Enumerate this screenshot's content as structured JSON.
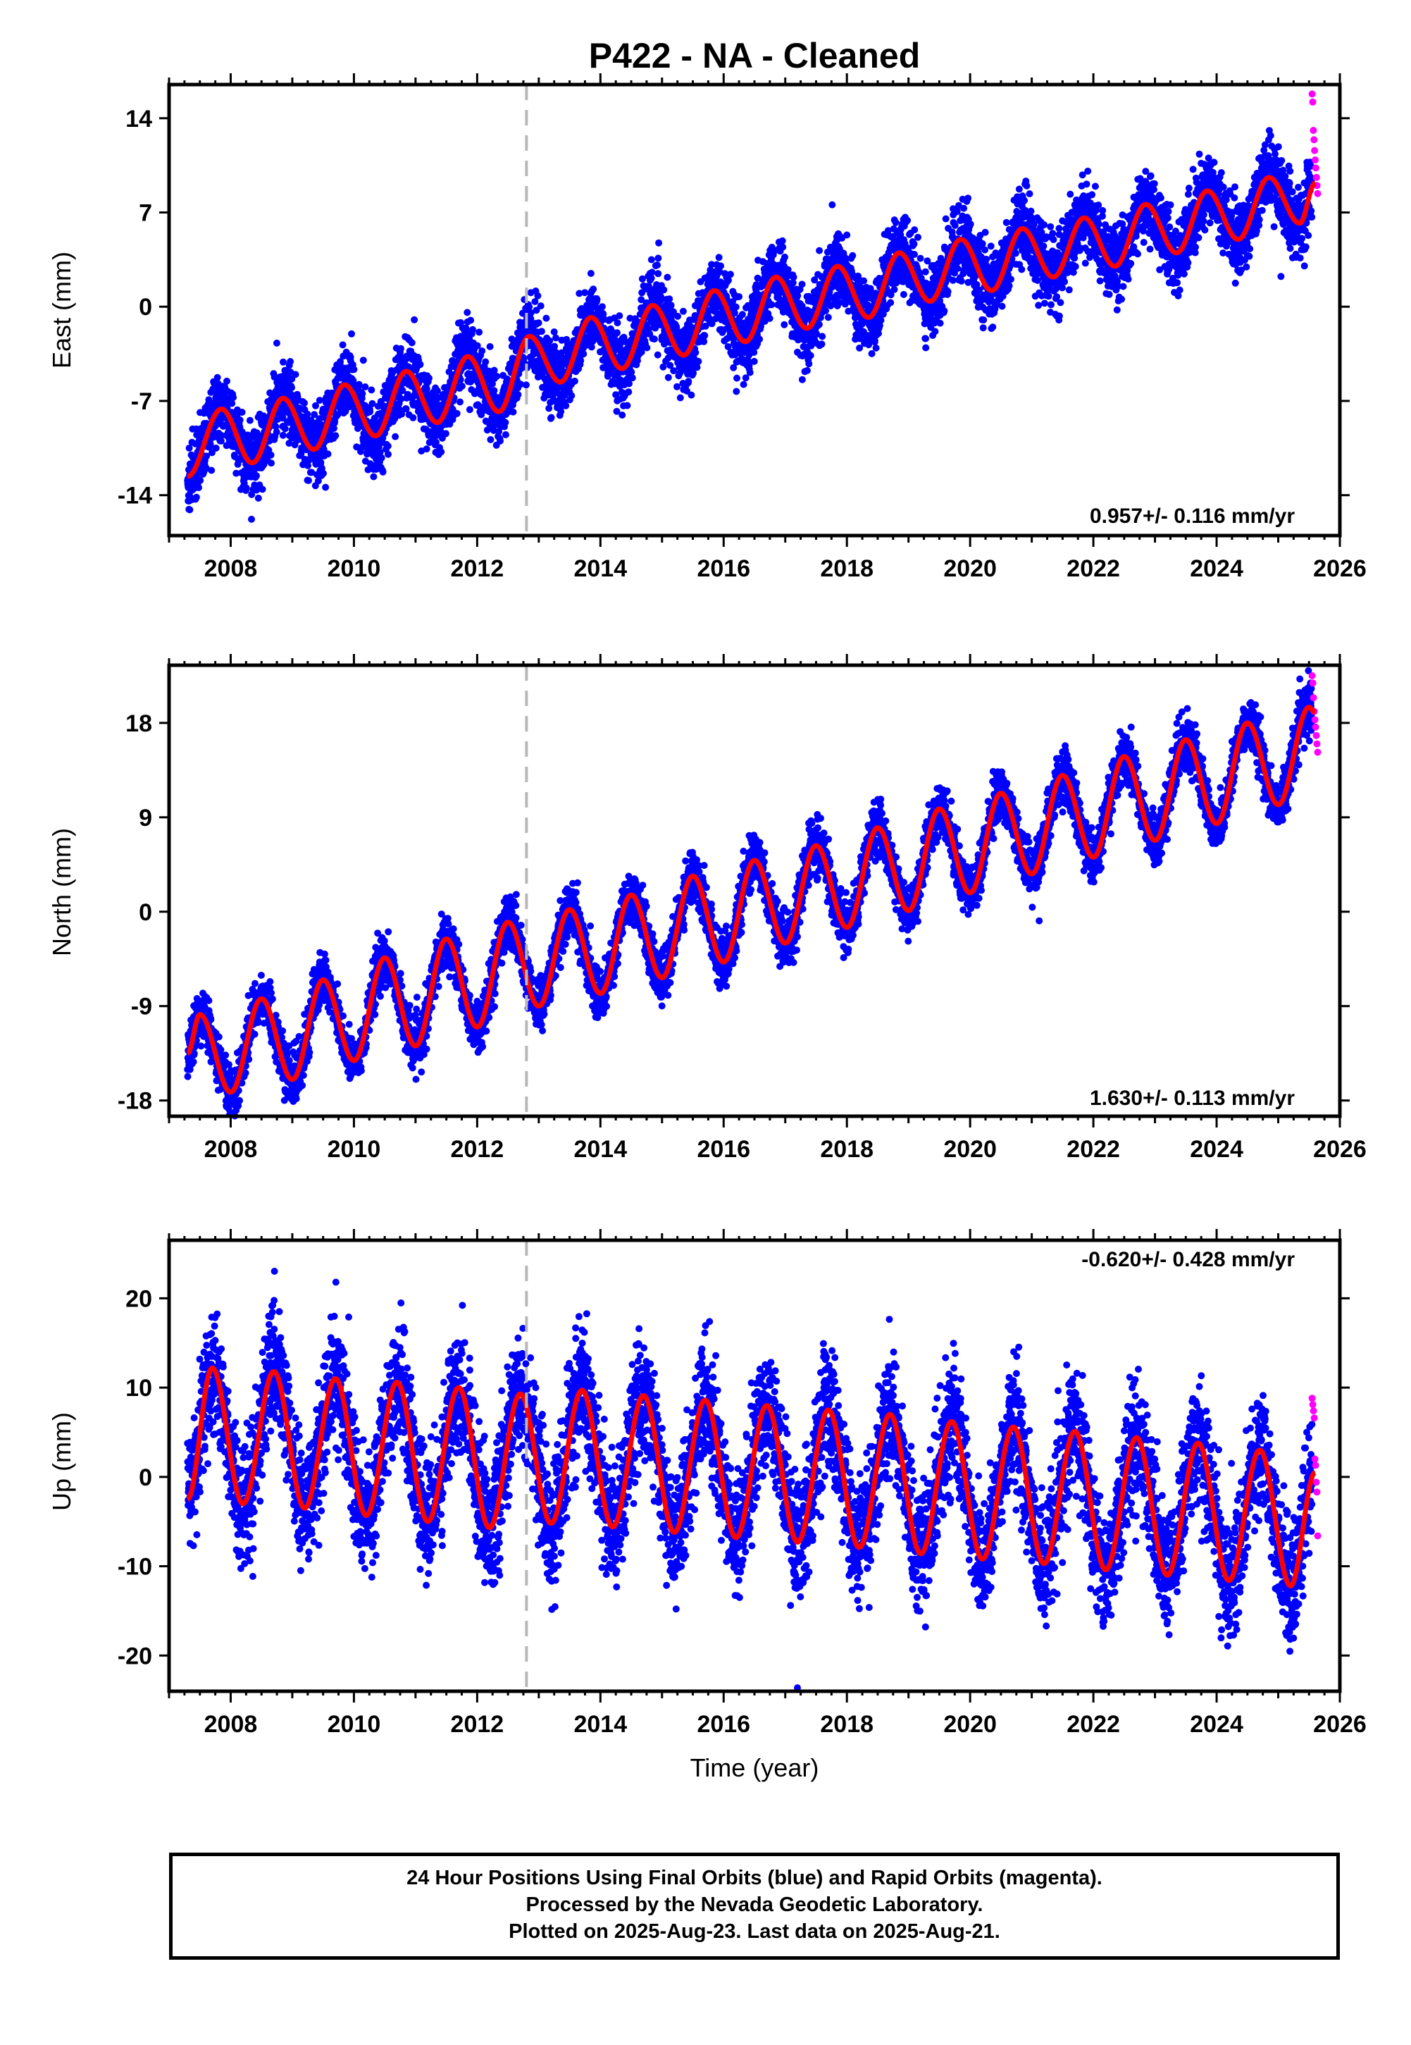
{
  "chart_data": [
    {
      "type": "scatter",
      "title": "P422  - NA - Cleaned",
      "ylabel": "East (mm)",
      "xlabel": "",
      "xlim": [
        2007.0,
        2026.0
      ],
      "ylim": [
        -17,
        16.5
      ],
      "yticks": [
        "-14",
        "-7",
        "0",
        "7",
        "14"
      ],
      "ytick_values": [
        -14,
        -7,
        0,
        7,
        14
      ],
      "xticks": [
        "2008",
        "2010",
        "2012",
        "2014",
        "2016",
        "2018",
        "2020",
        "2022",
        "2024",
        "2026"
      ],
      "xtick_values": [
        2008,
        2010,
        2012,
        2014,
        2016,
        2018,
        2020,
        2022,
        2024,
        2026
      ],
      "annotation": "0.957+/- 0.116 mm/yr",
      "annotation_position": "bottom-right",
      "break_line_x": 2012.8,
      "model": {
        "start": 2007.3,
        "end": 2025.6,
        "trend_mm_per_yr": 0.957,
        "annual_peaks": [
          -7.6,
          -6.8,
          -5.8,
          -4.8,
          -3.7,
          -2.2,
          -0.8,
          0.1,
          1.2,
          2.2,
          3.0,
          4.0,
          5.0,
          5.8,
          6.6,
          7.6,
          8.6,
          9.6
        ],
        "annual_troughs": [
          -12.6,
          -11.6,
          -10.6,
          -9.6,
          -8.6,
          -7.8,
          -5.6,
          -4.6,
          -3.6,
          -2.6,
          -1.6,
          -0.8,
          0.4,
          1.2,
          2.2,
          3.0,
          4.0,
          5.0,
          6.2
        ],
        "scatter_mm": 1.3
      },
      "series": [
        {
          "name": "Final Orbits (blue)",
          "color": "#0000ff",
          "x_range": [
            2007.3,
            2025.55
          ]
        },
        {
          "name": "Rapid Orbits (magenta)",
          "color": "#ff00ff",
          "x_range": [
            2025.55,
            2025.64
          ],
          "values": [
            15.8,
            15.2,
            13.1,
            12.4,
            11.6,
            10.9,
            10.3,
            9.6,
            9.0,
            8.4
          ]
        },
        {
          "name": "Model",
          "color": "#ff0000"
        }
      ]
    },
    {
      "type": "scatter",
      "title": "",
      "ylabel": "North (mm)",
      "xlabel": "",
      "xlim": [
        2007.0,
        2026.0
      ],
      "ylim": [
        -19.5,
        23.5
      ],
      "yticks": [
        "-18",
        "-9",
        "0",
        "9",
        "18"
      ],
      "ytick_values": [
        -18,
        -9,
        0,
        9,
        18
      ],
      "xticks": [
        "2008",
        "2010",
        "2012",
        "2014",
        "2016",
        "2018",
        "2020",
        "2022",
        "2024",
        "2026"
      ],
      "xtick_values": [
        2008,
        2010,
        2012,
        2014,
        2016,
        2018,
        2020,
        2022,
        2024,
        2026
      ],
      "annotation": "1.630+/- 0.113 mm/yr",
      "annotation_position": "bottom-right",
      "break_line_x": 2012.8,
      "model": {
        "start": 2007.3,
        "end": 2025.6,
        "trend_mm_per_yr": 1.63,
        "annual_peaks": [
          -9.8,
          -8.3,
          -6.5,
          -4.4,
          -2.6,
          -1.0,
          0.2,
          1.6,
          3.4,
          4.9,
          6.3,
          8.0,
          9.8,
          11.3,
          13.0,
          14.8,
          16.4,
          18.0,
          19.5
        ],
        "annual_troughs": [
          -17.2,
          -16.0,
          -14.2,
          -12.8,
          -11.0,
          -9.0,
          -7.8,
          -6.3,
          -4.8,
          -3.0,
          -1.5,
          0.1,
          1.8,
          3.6,
          5.2,
          6.8,
          8.4,
          10.2
        ],
        "scatter_mm": 1.2
      },
      "series": [
        {
          "name": "Final Orbits (blue)",
          "color": "#0000ff",
          "x_range": [
            2007.3,
            2025.55
          ]
        },
        {
          "name": "Rapid Orbits (magenta)",
          "color": "#ff00ff",
          "x_range": [
            2025.55,
            2025.64
          ],
          "values": [
            22.5,
            21.8,
            20.4,
            19.1,
            18.3,
            17.6,
            16.8,
            16.0,
            15.2
          ]
        },
        {
          "name": "Model",
          "color": "#ff0000"
        }
      ]
    },
    {
      "type": "scatter",
      "title": "",
      "ylabel": "Up (mm)",
      "xlabel": "Time (year)",
      "xlim": [
        2007.0,
        2026.0
      ],
      "ylim": [
        -24,
        26.5
      ],
      "yticks": [
        "-20",
        "-10",
        "0",
        "10",
        "20"
      ],
      "ytick_values": [
        -20,
        -10,
        0,
        10,
        20
      ],
      "xticks": [
        "2008",
        "2010",
        "2012",
        "2014",
        "2016",
        "2018",
        "2020",
        "2022",
        "2024",
        "2026"
      ],
      "xtick_values": [
        2008,
        2010,
        2012,
        2014,
        2016,
        2018,
        2020,
        2022,
        2024,
        2026
      ],
      "annotation": "-0.620+/- 0.428 mm/yr",
      "annotation_position": "top-right",
      "break_line_x": 2012.8,
      "model": {
        "start": 2007.3,
        "end": 2025.6,
        "trend_mm_per_yr": -0.62,
        "annual_peaks": [
          12.2,
          11.8,
          11.0,
          10.6,
          10.0,
          9.3,
          9.7,
          9.1,
          8.6,
          8.0,
          7.5,
          7.0,
          6.2,
          5.6,
          5.1,
          4.4,
          3.8,
          3.0
        ],
        "annual_troughs": [
          -3.0,
          -3.5,
          -4.3,
          -5.0,
          -5.7,
          -5.2,
          -5.6,
          -6.2,
          -6.8,
          -7.3,
          -7.9,
          -8.6,
          -9.2,
          -9.7,
          -10.4,
          -11.0,
          -11.6,
          -12.2
        ],
        "scatter_mm": 3.4
      },
      "series": [
        {
          "name": "Final Orbits (blue)",
          "color": "#0000ff",
          "x_range": [
            2007.3,
            2025.55
          ]
        },
        {
          "name": "Rapid Orbits (magenta)",
          "color": "#ff00ff",
          "x_range": [
            2025.55,
            2025.64
          ],
          "values": [
            8.8,
            8.1,
            7.4,
            6.6,
            2.0,
            1.3,
            -0.6,
            -1.7,
            -6.6
          ]
        },
        {
          "name": "Model",
          "color": "#ff0000"
        }
      ]
    }
  ],
  "caption": {
    "line1": "24 Hour Positions Using Final Orbits (blue) and Rapid Orbits (magenta).",
    "line2": "Processed by the Nevada Geodetic Laboratory.",
    "line3": "Plotted on 2025-Aug-23. Last data on 2025-Aug-21."
  }
}
